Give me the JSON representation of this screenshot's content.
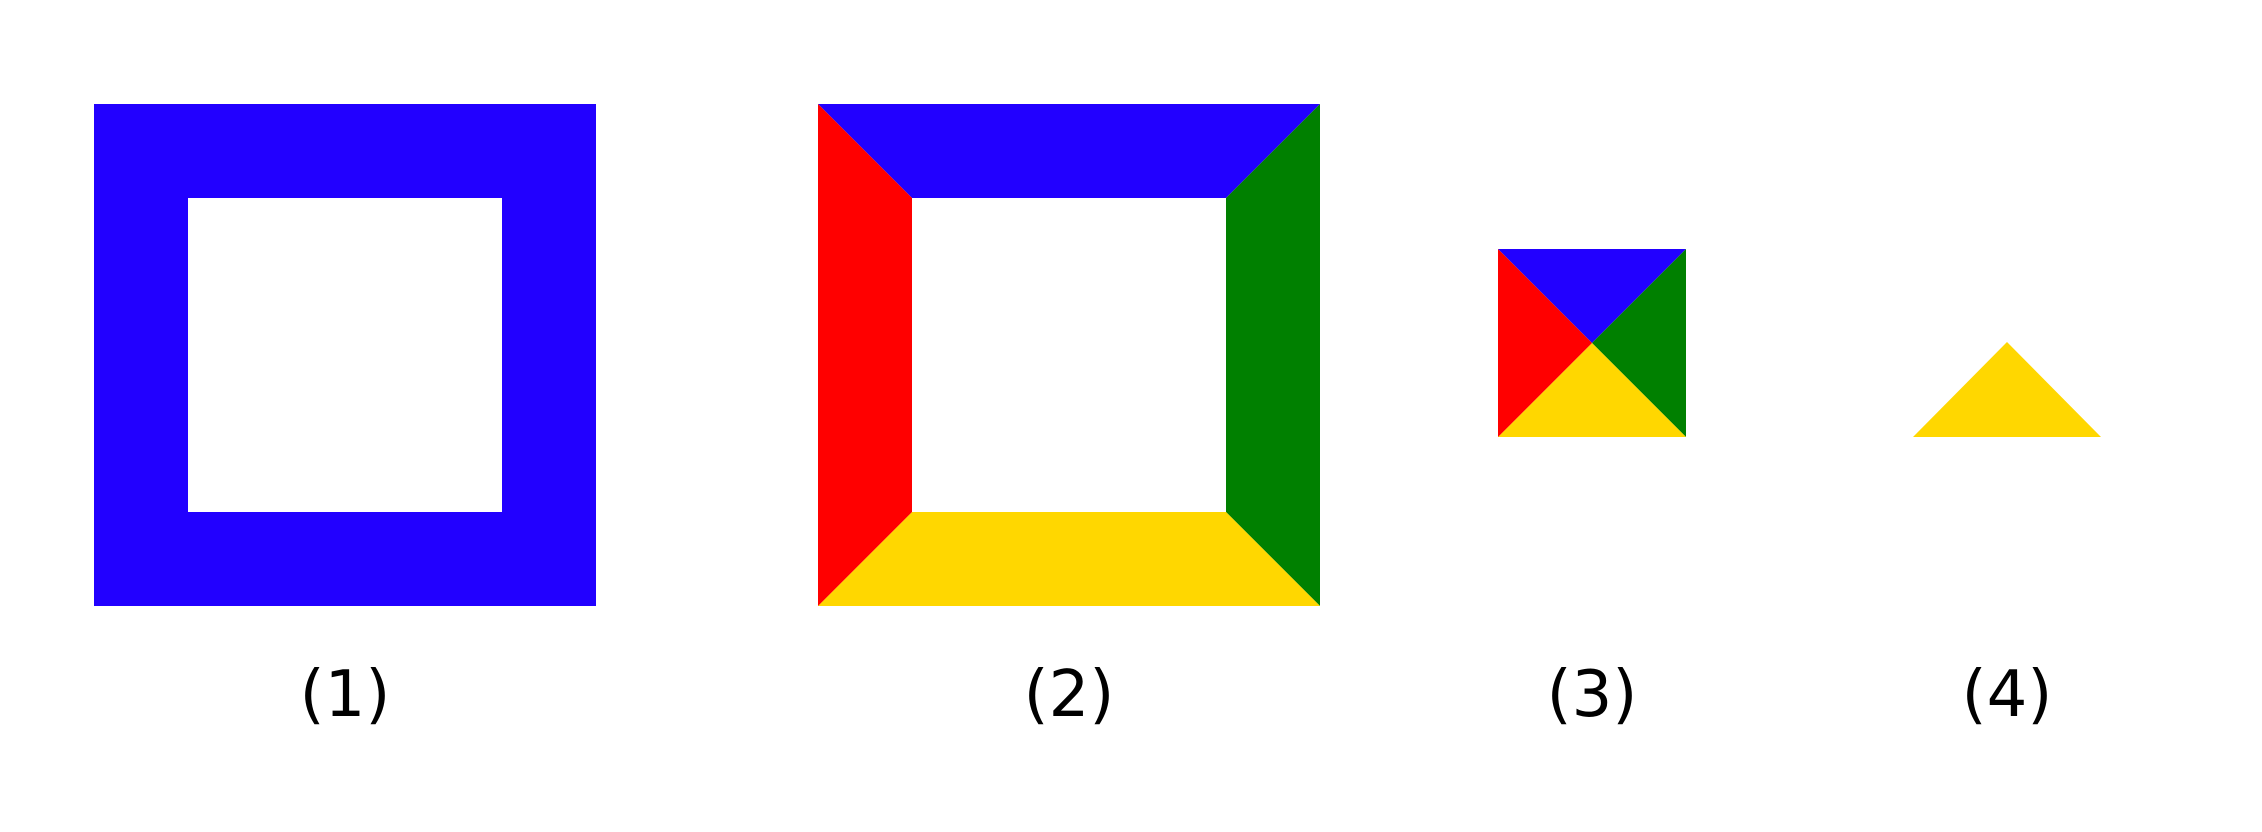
{
  "colors": {
    "top": "#2200ff",
    "left": "#ff0000",
    "right": "#008000",
    "bottom": "#ffd700",
    "background": "#ffffff"
  },
  "captions": [
    "(1)",
    "(2)",
    "(3)",
    "(4)"
  ]
}
